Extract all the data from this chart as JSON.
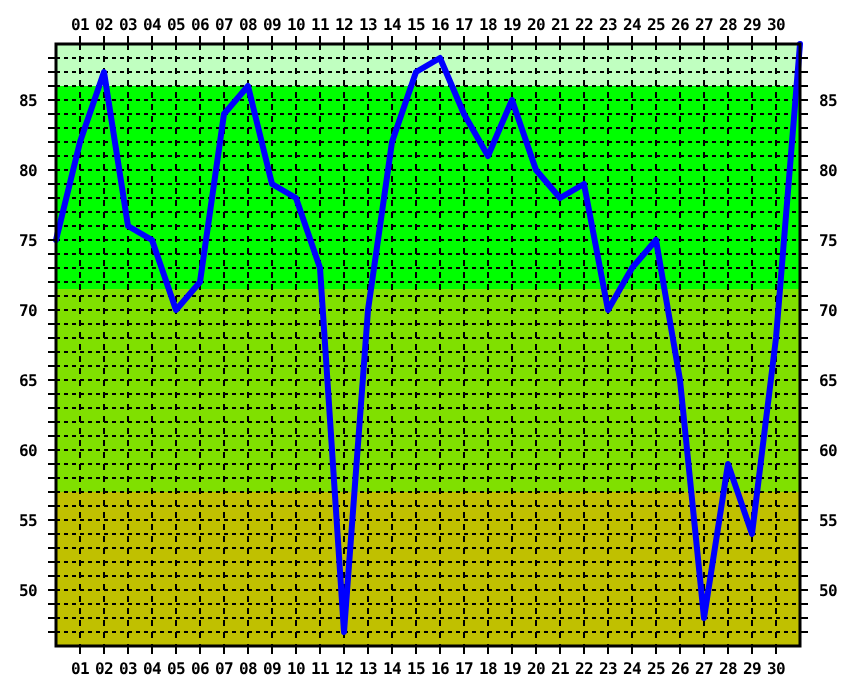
{
  "chart_data": {
    "type": "line",
    "x": [
      0,
      1,
      2,
      3,
      4,
      5,
      6,
      7,
      8,
      9,
      10,
      11,
      12,
      13,
      14,
      15,
      16,
      17,
      18,
      19,
      20,
      21,
      22,
      23,
      24,
      25,
      26,
      27,
      28,
      29,
      30,
      31
    ],
    "series": [
      {
        "color": "#0000ff",
        "values": [
          75,
          82,
          87,
          76,
          75,
          70,
          72,
          84,
          86,
          79,
          78,
          73,
          47,
          70,
          82,
          87,
          88,
          84,
          81,
          85,
          80,
          78,
          79,
          70,
          73,
          75,
          65,
          48,
          59,
          54,
          68,
          89
        ]
      }
    ],
    "xlim": [
      0,
      31
    ],
    "xticks": [
      {
        "value": 1,
        "label": "01"
      },
      {
        "value": 2,
        "label": "02"
      },
      {
        "value": 3,
        "label": "03"
      },
      {
        "value": 4,
        "label": "04"
      },
      {
        "value": 5,
        "label": "05"
      },
      {
        "value": 6,
        "label": "06"
      },
      {
        "value": 7,
        "label": "07"
      },
      {
        "value": 8,
        "label": "08"
      },
      {
        "value": 9,
        "label": "09"
      },
      {
        "value": 10,
        "label": "10"
      },
      {
        "value": 11,
        "label": "11"
      },
      {
        "value": 12,
        "label": "12"
      },
      {
        "value": 13,
        "label": "13"
      },
      {
        "value": 14,
        "label": "14"
      },
      {
        "value": 15,
        "label": "15"
      },
      {
        "value": 16,
        "label": "16"
      },
      {
        "value": 17,
        "label": "17"
      },
      {
        "value": 18,
        "label": "18"
      },
      {
        "value": 19,
        "label": "19"
      },
      {
        "value": 20,
        "label": "20"
      },
      {
        "value": 21,
        "label": "21"
      },
      {
        "value": 22,
        "label": "22"
      },
      {
        "value": 23,
        "label": "23"
      },
      {
        "value": 24,
        "label": "24"
      },
      {
        "value": 25,
        "label": "25"
      },
      {
        "value": 26,
        "label": "26"
      },
      {
        "value": 27,
        "label": "27"
      },
      {
        "value": 28,
        "label": "28"
      },
      {
        "value": 29,
        "label": "29"
      },
      {
        "value": 30,
        "label": "30"
      }
    ],
    "x2lim": [
      0,
      31
    ],
    "x2ticks": [
      {
        "value": 1,
        "label": "01"
      },
      {
        "value": 2,
        "label": "02"
      },
      {
        "value": 3,
        "label": "03"
      },
      {
        "value": 4,
        "label": "04"
      },
      {
        "value": 5,
        "label": "05"
      },
      {
        "value": 6,
        "label": "06"
      },
      {
        "value": 7,
        "label": "07"
      },
      {
        "value": 8,
        "label": "08"
      },
      {
        "value": 9,
        "label": "09"
      },
      {
        "value": 10,
        "label": "10"
      },
      {
        "value": 11,
        "label": "11"
      },
      {
        "value": 12,
        "label": "12"
      },
      {
        "value": 13,
        "label": "13"
      },
      {
        "value": 14,
        "label": "14"
      },
      {
        "value": 15,
        "label": "15"
      },
      {
        "value": 16,
        "label": "16"
      },
      {
        "value": 17,
        "label": "17"
      },
      {
        "value": 18,
        "label": "18"
      },
      {
        "value": 19,
        "label": "19"
      },
      {
        "value": 20,
        "label": "20"
      },
      {
        "value": 21,
        "label": "21"
      },
      {
        "value": 22,
        "label": "22"
      },
      {
        "value": 23,
        "label": "23"
      },
      {
        "value": 24,
        "label": "24"
      },
      {
        "value": 25,
        "label": "25"
      },
      {
        "value": 26,
        "label": "26"
      },
      {
        "value": 27,
        "label": "27"
      },
      {
        "value": 28,
        "label": "28"
      },
      {
        "value": 29,
        "label": "29"
      },
      {
        "value": 30,
        "label": "30"
      }
    ],
    "ylim": [
      46,
      89
    ],
    "yticks": [
      {
        "value": 47,
        "label": null
      },
      {
        "value": 48,
        "label": null
      },
      {
        "value": 49,
        "label": null
      },
      50,
      {
        "value": 51,
        "label": null
      },
      {
        "value": 52,
        "label": null
      },
      {
        "value": 53,
        "label": null
      },
      {
        "value": 54,
        "label": null
      },
      55,
      {
        "value": 56,
        "label": null
      },
      {
        "value": 57,
        "label": null
      },
      {
        "value": 58,
        "label": null
      },
      {
        "value": 59,
        "label": null
      },
      60,
      {
        "value": 61,
        "label": null
      },
      {
        "value": 62,
        "label": null
      },
      {
        "value": 63,
        "label": null
      },
      {
        "value": 64,
        "label": null
      },
      65,
      {
        "value": 66,
        "label": null
      },
      {
        "value": 67,
        "label": null
      },
      {
        "value": 68,
        "label": null
      },
      {
        "value": 69,
        "label": null
      },
      70,
      {
        "value": 71,
        "label": null
      },
      {
        "value": 72,
        "label": null
      },
      {
        "value": 73,
        "label": null
      },
      {
        "value": 74,
        "label": null
      },
      75,
      {
        "value": 76,
        "label": null
      },
      {
        "value": 77,
        "label": null
      },
      {
        "value": 78,
        "label": null
      },
      {
        "value": 79,
        "label": null
      },
      80,
      {
        "value": 81,
        "label": null
      },
      {
        "value": 82,
        "label": null
      },
      {
        "value": 83,
        "label": null
      },
      {
        "value": 84,
        "label": null
      },
      85,
      {
        "value": 86,
        "label": null
      },
      {
        "value": 87,
        "label": null
      },
      {
        "value": 88,
        "label": null
      }
    ],
    "y2lim": [
      46,
      89
    ],
    "y2ticks": [
      {
        "value": 47,
        "label": null
      },
      {
        "value": 48,
        "label": null
      },
      {
        "value": 49,
        "label": null
      },
      50,
      {
        "value": 51,
        "label": null
      },
      {
        "value": 52,
        "label": null
      },
      {
        "value": 53,
        "label": null
      },
      {
        "value": 54,
        "label": null
      },
      55,
      {
        "value": 56,
        "label": null
      },
      {
        "value": 57,
        "label": null
      },
      {
        "value": 58,
        "label": null
      },
      {
        "value": 59,
        "label": null
      },
      60,
      {
        "value": 61,
        "label": null
      },
      {
        "value": 62,
        "label": null
      },
      {
        "value": 63,
        "label": null
      },
      {
        "value": 64,
        "label": null
      },
      65,
      {
        "value": 66,
        "label": null
      },
      {
        "value": 67,
        "label": null
      },
      {
        "value": 68,
        "label": null
      },
      {
        "value": 69,
        "label": null
      },
      70,
      {
        "value": 71,
        "label": null
      },
      {
        "value": 72,
        "label": null
      },
      {
        "value": 73,
        "label": null
      },
      {
        "value": 74,
        "label": null
      },
      75,
      {
        "value": 76,
        "label": null
      },
      {
        "value": 77,
        "label": null
      },
      {
        "value": 78,
        "label": null
      },
      {
        "value": 79,
        "label": null
      },
      80,
      {
        "value": 81,
        "label": null
      },
      {
        "value": 82,
        "label": null
      },
      {
        "value": 83,
        "label": null
      },
      {
        "value": 84,
        "label": null
      },
      85,
      {
        "value": 86,
        "label": null
      },
      {
        "value": 87,
        "label": null
      },
      {
        "value": 88,
        "label": null
      }
    ],
    "bands": [
      {
        "axis": "y",
        "from": 46,
        "to": 57,
        "color": "#c0c000"
      },
      {
        "axis": "y",
        "from": 57,
        "to": 71.5,
        "color": "#80e000"
      },
      {
        "axis": "y",
        "from": 71.5,
        "to": 86,
        "color": "#00ff00"
      },
      {
        "axis": "y",
        "from": 86,
        "to": 89,
        "color": "#c0ffc0"
      }
    ],
    "grid": true,
    "marker": "none",
    "line_style": "solid"
  }
}
